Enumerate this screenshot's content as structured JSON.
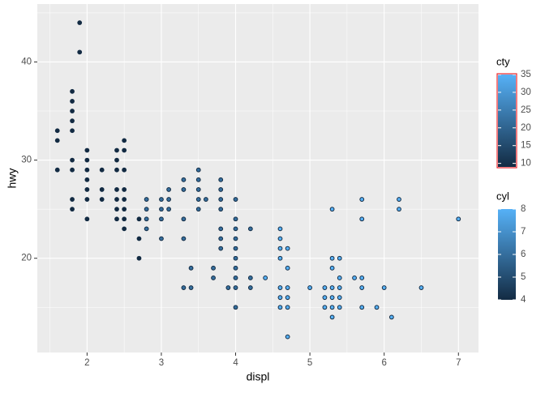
{
  "chart_data": {
    "type": "scatter",
    "x_label": "displ",
    "y_label": "hwy",
    "x": [
      1.6,
      1.6,
      1.6,
      1.8,
      1.8,
      1.8,
      1.8,
      1.8,
      1.8,
      1.8,
      1.8,
      1.8,
      1.9,
      1.9,
      2.0,
      2.0,
      2.0,
      2.0,
      2.0,
      2.0,
      2.0,
      2.2,
      2.2,
      2.2,
      2.4,
      2.4,
      2.4,
      2.4,
      2.4,
      2.4,
      2.4,
      2.5,
      2.5,
      2.5,
      2.5,
      2.5,
      2.5,
      2.5,
      2.5,
      2.7,
      2.7,
      2.7,
      2.8,
      2.8,
      2.8,
      2.8,
      3.0,
      3.0,
      3.0,
      3.0,
      3.1,
      3.1,
      3.1,
      3.3,
      3.3,
      3.3,
      3.3,
      3.3,
      3.4,
      3.4,
      3.5,
      3.5,
      3.5,
      3.5,
      3.5,
      3.6,
      3.7,
      3.7,
      3.8,
      3.8,
      3.8,
      3.8,
      3.8,
      3.8,
      3.8,
      3.9,
      4.0,
      4.0,
      4.0,
      4.0,
      4.0,
      4.0,
      4.0,
      4.0,
      4.0,
      4.0,
      4.2,
      4.2,
      4.2,
      4.4,
      4.6,
      4.6,
      4.6,
      4.6,
      4.6,
      4.6,
      4.6,
      4.7,
      4.7,
      4.7,
      4.7,
      4.7,
      4.7,
      5.0,
      5.2,
      5.2,
      5.2,
      5.3,
      5.3,
      5.3,
      5.3,
      5.3,
      5.3,
      5.3,
      5.4,
      5.4,
      5.4,
      5.4,
      5.4,
      5.6,
      5.7,
      5.7,
      5.7,
      5.7,
      5.7,
      5.9,
      6.0,
      6.1,
      6.2,
      6.2,
      6.5,
      7.0
    ],
    "y": [
      33,
      32,
      29,
      29,
      37,
      36,
      35,
      34,
      33,
      30,
      26,
      25,
      44,
      41,
      31,
      30,
      29,
      28,
      27,
      26,
      24,
      29,
      27,
      26,
      31,
      30,
      29,
      27,
      26,
      25,
      24,
      32,
      31,
      29,
      27,
      26,
      25,
      24,
      23,
      20,
      22,
      24,
      26,
      25,
      24,
      23,
      26,
      25,
      24,
      22,
      27,
      26,
      25,
      28,
      27,
      24,
      22,
      17,
      19,
      17,
      29,
      28,
      27,
      26,
      25,
      26,
      19,
      18,
      28,
      27,
      26,
      25,
      23,
      22,
      21,
      17,
      26,
      24,
      23,
      22,
      21,
      20,
      19,
      18,
      17,
      15,
      23,
      18,
      17,
      18,
      23,
      22,
      21,
      20,
      17,
      16,
      15,
      21,
      19,
      17,
      16,
      15,
      12,
      17,
      17,
      16,
      15,
      25,
      20,
      19,
      17,
      16,
      15,
      14,
      20,
      18,
      17,
      16,
      15,
      18,
      26,
      24,
      18,
      17,
      15,
      15,
      17,
      14,
      26,
      25,
      17,
      24
    ],
    "cyl": [
      4,
      4,
      4,
      4,
      4,
      4,
      4,
      4,
      4,
      4,
      4,
      4,
      4,
      4,
      4,
      4,
      4,
      4,
      4,
      4,
      4,
      4,
      4,
      4,
      4,
      4,
      4,
      4,
      4,
      4,
      4,
      4,
      4,
      4,
      4,
      4,
      4,
      4,
      4,
      4,
      4,
      4,
      6,
      6,
      6,
      6,
      6,
      6,
      6,
      6,
      6,
      6,
      6,
      6,
      6,
      6,
      6,
      6,
      6,
      6,
      6,
      6,
      6,
      6,
      6,
      6,
      6,
      6,
      6,
      6,
      6,
      6,
      6,
      6,
      6,
      6,
      6,
      6,
      6,
      6,
      6,
      6,
      6,
      6,
      6,
      6,
      6,
      6,
      6,
      8,
      8,
      8,
      8,
      8,
      8,
      8,
      8,
      8,
      8,
      8,
      8,
      8,
      8,
      8,
      8,
      8,
      8,
      8,
      8,
      8,
      8,
      8,
      8,
      8,
      8,
      8,
      8,
      8,
      8,
      8,
      8,
      8,
      8,
      8,
      8,
      8,
      8,
      8,
      8,
      8,
      8,
      8
    ],
    "xlim": [
      1.33,
      7.27
    ],
    "ylim": [
      10.4,
      45.9
    ],
    "xticks": [
      2,
      3,
      4,
      5,
      6,
      7
    ],
    "yticks": [
      20,
      30,
      40
    ],
    "grid": true,
    "low_color": "#132B43",
    "high_color": "#56B1F7",
    "outline_color": "#132B43",
    "legends": [
      {
        "title": "cty",
        "lim": [
          9,
          35
        ],
        "ticks": [
          10,
          15,
          20,
          25,
          30,
          35
        ]
      },
      {
        "title": "cyl",
        "lim": [
          4,
          8
        ],
        "ticks": [
          4,
          5,
          6,
          7,
          8
        ]
      }
    ]
  }
}
